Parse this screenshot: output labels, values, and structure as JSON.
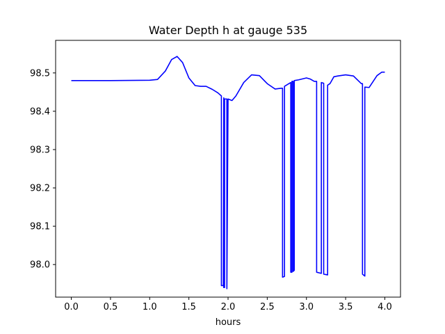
{
  "chart_data": {
    "type": "line",
    "title": "Water Depth h at gauge 535",
    "xlabel": "hours",
    "ylabel": "",
    "xlim": [
      -0.2,
      4.2
    ],
    "ylim": [
      97.915,
      98.585
    ],
    "grid": false,
    "x_ticks": [
      {
        "value": 0.0,
        "label": "0.0"
      },
      {
        "value": 0.5,
        "label": "0.5"
      },
      {
        "value": 1.0,
        "label": "1.0"
      },
      {
        "value": 1.5,
        "label": "1.5"
      },
      {
        "value": 2.0,
        "label": "2.0"
      },
      {
        "value": 2.5,
        "label": "2.5"
      },
      {
        "value": 3.0,
        "label": "3.0"
      },
      {
        "value": 3.5,
        "label": "3.5"
      },
      {
        "value": 4.0,
        "label": "4.0"
      }
    ],
    "y_ticks": [
      {
        "value": 98.0,
        "label": "98.0"
      },
      {
        "value": 98.1,
        "label": "98.1"
      },
      {
        "value": 98.2,
        "label": "98.2"
      },
      {
        "value": 98.3,
        "label": "98.3"
      },
      {
        "value": 98.4,
        "label": "98.4"
      },
      {
        "value": 98.5,
        "label": "98.5"
      }
    ],
    "series": [
      {
        "color": "#0000ff",
        "x": [
          0.0,
          0.5,
          1.0,
          1.1,
          1.2,
          1.28,
          1.35,
          1.42,
          1.5,
          1.58,
          1.65,
          1.72,
          1.8,
          1.87,
          1.915,
          1.915,
          1.94,
          1.945,
          1.945,
          1.955,
          1.955,
          1.97,
          1.985,
          1.985,
          2.0,
          2.05,
          2.1,
          2.2,
          2.3,
          2.4,
          2.5,
          2.6,
          2.68,
          2.695,
          2.695,
          2.72,
          2.72,
          2.8,
          2.8,
          2.815,
          2.815,
          2.83,
          2.83,
          2.845,
          2.845,
          2.9,
          3.0,
          3.05,
          3.1,
          3.13,
          3.13,
          3.19,
          3.19,
          3.22,
          3.22,
          3.27,
          3.27,
          3.3,
          3.35,
          3.4,
          3.5,
          3.6,
          3.7,
          3.715,
          3.715,
          3.745,
          3.745,
          3.8,
          3.9,
          3.96,
          4.0
        ],
        "y": [
          98.48,
          98.48,
          98.481,
          98.483,
          98.505,
          98.535,
          98.543,
          98.527,
          98.487,
          98.467,
          98.465,
          98.465,
          98.457,
          98.448,
          98.44,
          97.945,
          97.945,
          98.435,
          97.94,
          97.94,
          98.432,
          98.432,
          98.432,
          97.937,
          98.432,
          98.428,
          98.44,
          98.475,
          98.495,
          98.493,
          98.472,
          98.458,
          98.46,
          98.46,
          97.967,
          97.969,
          98.465,
          98.475,
          97.98,
          97.98,
          98.478,
          98.478,
          97.982,
          97.985,
          98.48,
          98.482,
          98.487,
          98.484,
          98.478,
          98.478,
          97.98,
          97.977,
          98.475,
          98.473,
          97.975,
          97.973,
          98.468,
          98.472,
          98.49,
          98.492,
          98.495,
          98.492,
          98.472,
          98.472,
          97.975,
          97.97,
          98.463,
          98.462,
          98.493,
          98.502,
          98.502
        ]
      }
    ]
  }
}
